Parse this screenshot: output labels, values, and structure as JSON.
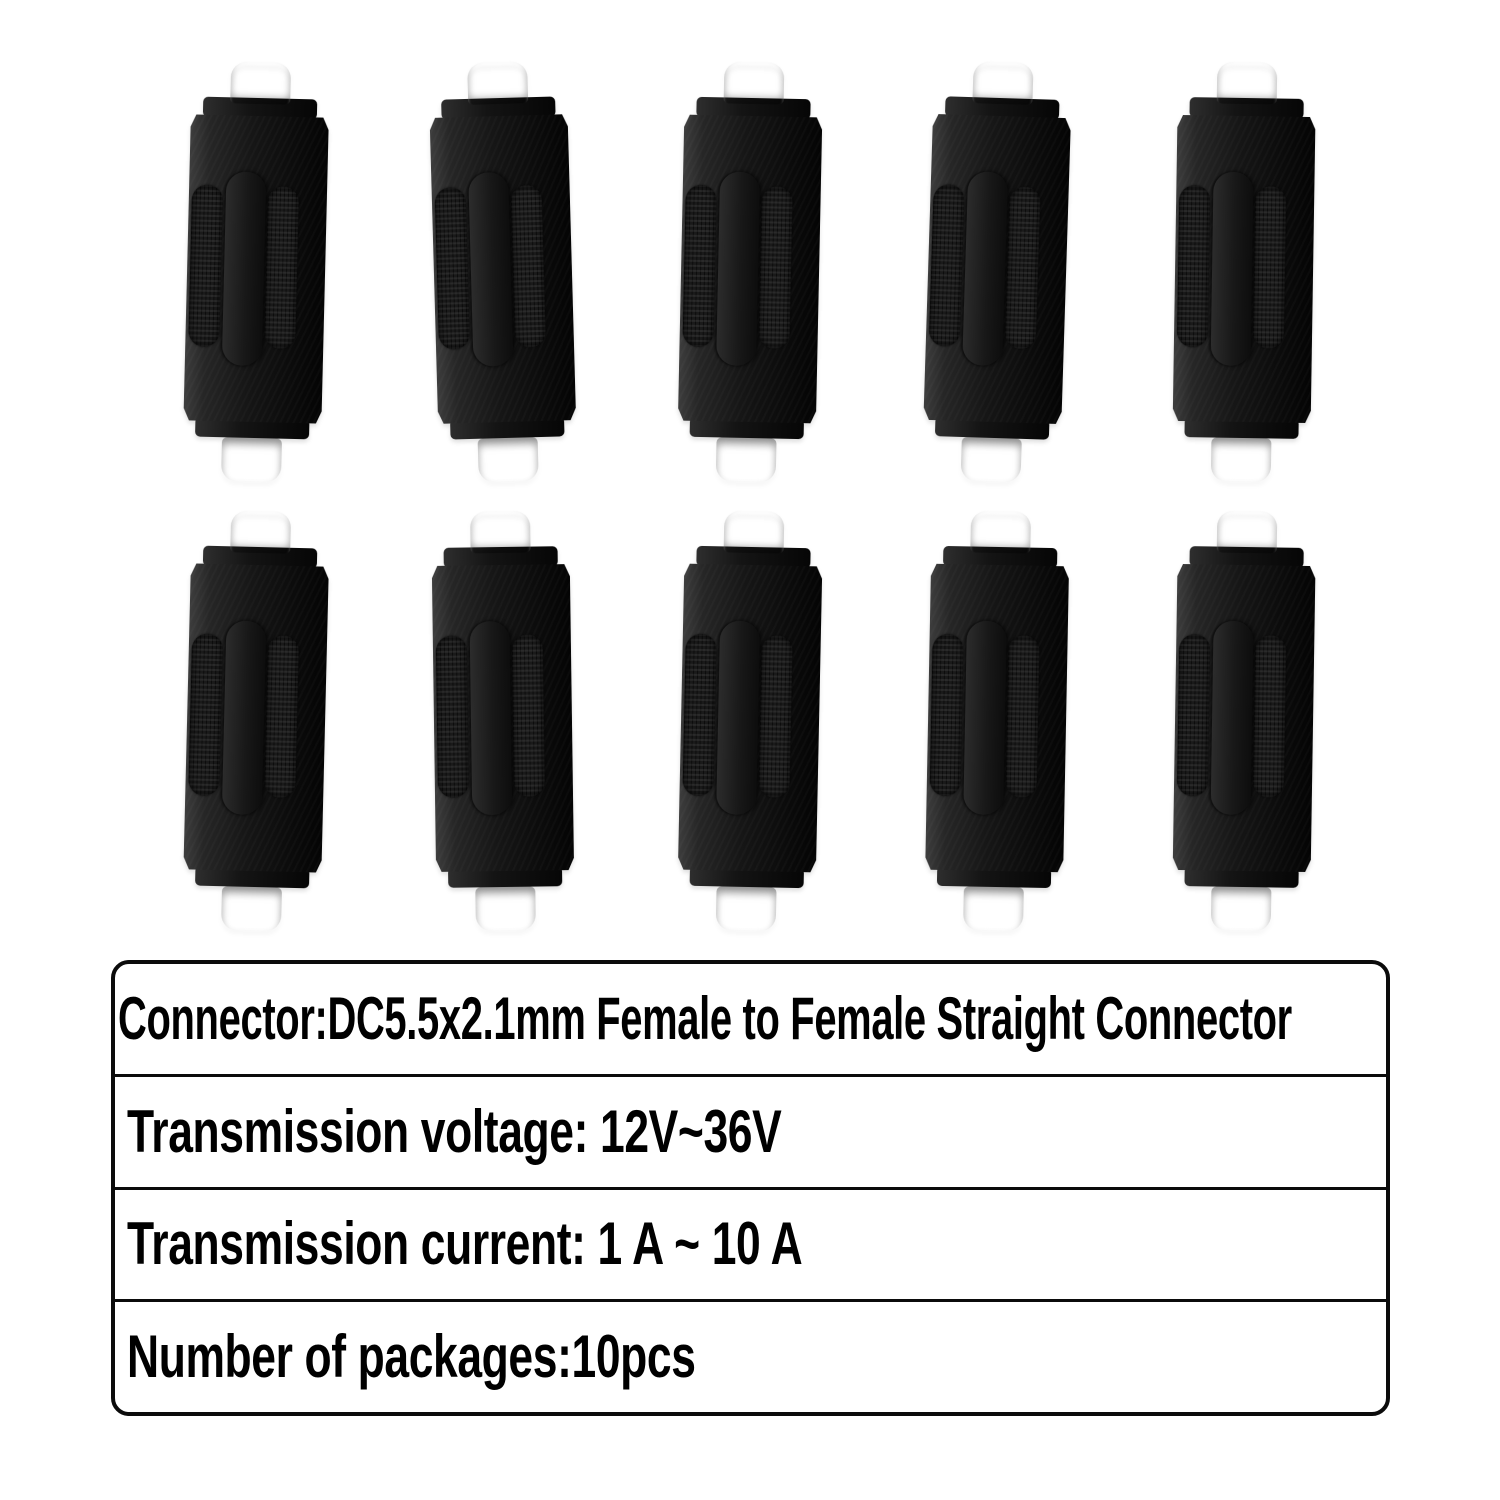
{
  "connectors": {
    "count": 10,
    "per_row": 5
  },
  "specs": {
    "rows": [
      "Connector:DC5.5x2.1mm Female to Female Straight Connector",
      "Transmission voltage: 12V~36V",
      "Transmission current: 1 A ~ 10 A",
      "Number of packages:10pcs"
    ]
  },
  "colors": {
    "bg": "#ffffff",
    "line": "#0b0b0b",
    "text": "#000000",
    "connector_body": "#161616",
    "tip_silver": "#d8d8d6",
    "tip_brass": "#c3a052"
  }
}
